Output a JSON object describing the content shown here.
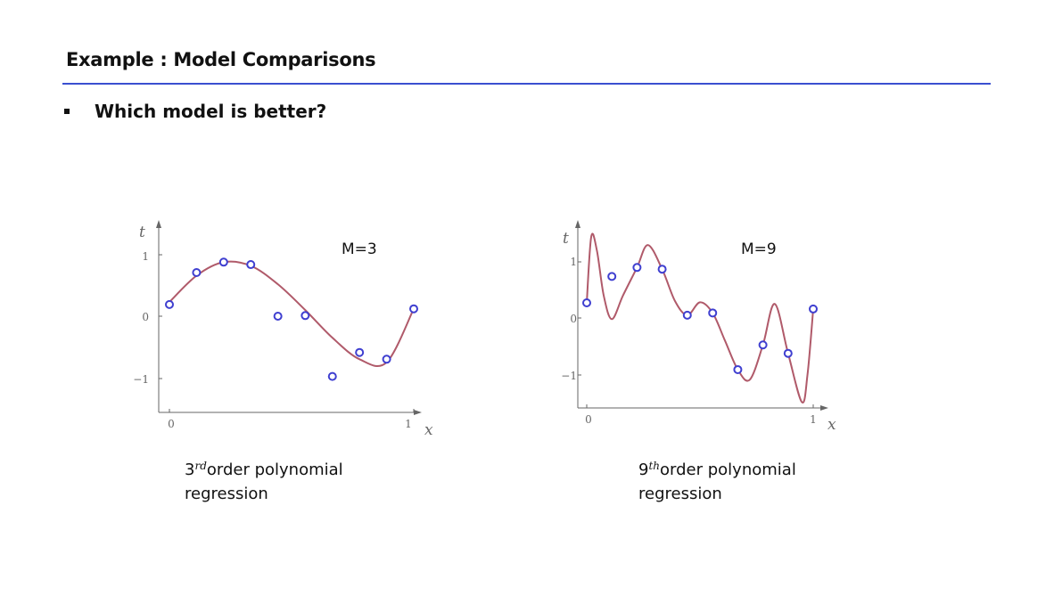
{
  "slide": {
    "title": "Example : Model Comparisons",
    "bullet": "Which model is better?"
  },
  "colors": {
    "rule": "#3a4fd0",
    "curve": "#b05a6a",
    "point": "#3f3fd0",
    "axis": "#666666"
  },
  "chart_data": [
    {
      "type": "scatter",
      "annotation": "M=3",
      "xlabel": "x",
      "ylabel": "t",
      "x_ticks": [
        "0",
        "1"
      ],
      "y_ticks": [
        "1",
        "0",
        "−1"
      ],
      "xlim": [
        0,
        1
      ],
      "ylim": [
        -1.5,
        1.5
      ],
      "grid": false,
      "caption": {
        "power": "3",
        "suffix": "rd",
        "line1": "order polynomial",
        "line2": "regression"
      },
      "series": [
        {
          "kind": "points",
          "x": [
            0.0,
            0.111,
            0.222,
            0.333,
            0.444,
            0.556,
            0.667,
            0.778,
            0.889,
            1.0
          ],
          "y": [
            0.19,
            0.71,
            0.88,
            0.84,
            0.0,
            0.01,
            -0.98,
            -0.59,
            -0.7,
            0.12
          ]
        },
        {
          "kind": "fit-curve",
          "x": [
            0.0,
            0.111,
            0.222,
            0.333,
            0.444,
            0.556,
            0.667,
            0.778,
            0.889,
            1.0
          ],
          "y": [
            0.23,
            0.66,
            0.88,
            0.82,
            0.52,
            0.1,
            -0.35,
            -0.7,
            -0.75,
            0.12
          ]
        }
      ]
    },
    {
      "type": "scatter",
      "annotation": "M=9",
      "xlabel": "x",
      "ylabel": "t",
      "x_ticks": [
        "0",
        "1"
      ],
      "y_ticks": [
        "1",
        "0",
        "−1"
      ],
      "xlim": [
        0,
        1
      ],
      "ylim": [
        -1.5,
        1.5
      ],
      "grid": false,
      "caption": {
        "power": "9",
        "suffix": "th",
        "line1": "order polynomial",
        "line2": "regression"
      },
      "series": [
        {
          "kind": "points",
          "x": [
            0.0,
            0.111,
            0.222,
            0.333,
            0.444,
            0.556,
            0.667,
            0.778,
            0.889,
            1.0
          ],
          "y": [
            0.27,
            0.74,
            0.9,
            0.87,
            0.05,
            0.09,
            -0.92,
            -0.48,
            -0.63,
            0.16
          ]
        },
        {
          "kind": "fit-curve",
          "x": [
            0.0,
            0.02,
            0.045,
            0.075,
            0.111,
            0.16,
            0.222,
            0.27,
            0.333,
            0.39,
            0.444,
            0.5,
            0.556,
            0.61,
            0.667,
            0.72,
            0.778,
            0.83,
            0.889,
            0.95,
            0.975,
            1.0
          ],
          "y": [
            0.27,
            1.45,
            1.2,
            0.4,
            -0.02,
            0.4,
            0.9,
            1.3,
            0.87,
            0.3,
            0.05,
            0.28,
            0.09,
            -0.4,
            -0.92,
            -1.1,
            -0.48,
            0.25,
            -0.63,
            -1.5,
            -1.0,
            0.16
          ]
        }
      ]
    }
  ]
}
